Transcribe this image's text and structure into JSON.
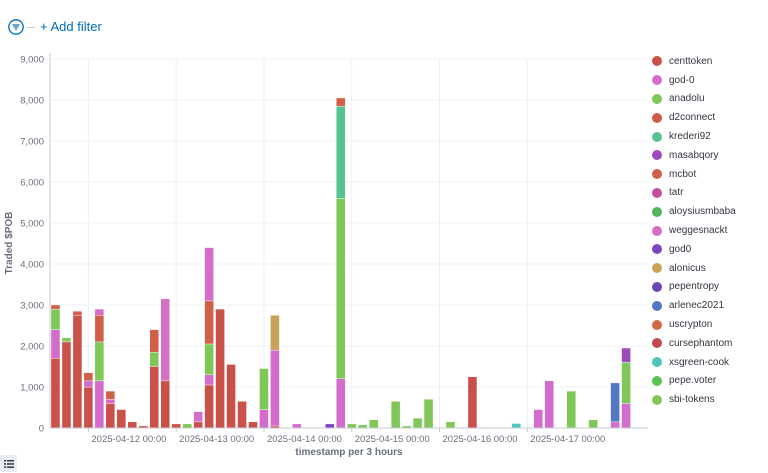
{
  "filter_bar": {
    "add_filter_label": "+ Add filter",
    "filter_icon": "filter-icon"
  },
  "legend_icon": "list-icon",
  "chart_data": {
    "type": "bar",
    "stacked": true,
    "ylabel": "Traded $POB",
    "xlabel": "timestamp per 3 hours",
    "ylim": [
      0,
      9000
    ],
    "yticks": [
      "0",
      "1,000",
      "2,000",
      "3,000",
      "4,000",
      "5,000",
      "6,000",
      "7,000",
      "8,000",
      "9,000"
    ],
    "xticks": [
      {
        "label": "2025-04-12 00:00",
        "at": "2025-04-12T00:00"
      },
      {
        "label": "2025-04-13 00:00",
        "at": "2025-04-13T00:00"
      },
      {
        "label": "2025-04-14 00:00",
        "at": "2025-04-14T00:00"
      },
      {
        "label": "2025-04-15 00:00",
        "at": "2025-04-15T00:00"
      },
      {
        "label": "2025-04-16 00:00",
        "at": "2025-04-16T00:00"
      },
      {
        "label": "2025-04-17 00:00",
        "at": "2025-04-17T00:00"
      }
    ],
    "grid": true,
    "legend_position": "right",
    "categories": [
      "2025-04-11T15:00",
      "2025-04-11T18:00",
      "2025-04-11T21:00",
      "2025-04-12T00:00",
      "2025-04-12T03:00",
      "2025-04-12T06:00",
      "2025-04-12T09:00",
      "2025-04-12T12:00",
      "2025-04-12T15:00",
      "2025-04-12T18:00",
      "2025-04-12T21:00",
      "2025-04-13T00:00",
      "2025-04-13T03:00",
      "2025-04-13T06:00",
      "2025-04-13T09:00",
      "2025-04-13T12:00",
      "2025-04-13T15:00",
      "2025-04-13T18:00",
      "2025-04-13T21:00",
      "2025-04-14T00:00",
      "2025-04-14T03:00",
      "2025-04-14T06:00",
      "2025-04-14T09:00",
      "2025-04-14T12:00",
      "2025-04-14T15:00",
      "2025-04-14T18:00",
      "2025-04-14T21:00",
      "2025-04-15T00:00",
      "2025-04-15T03:00",
      "2025-04-15T06:00",
      "2025-04-15T09:00",
      "2025-04-15T12:00",
      "2025-04-15T15:00",
      "2025-04-15T18:00",
      "2025-04-15T21:00",
      "2025-04-16T00:00",
      "2025-04-16T03:00",
      "2025-04-16T06:00",
      "2025-04-16T09:00",
      "2025-04-16T12:00",
      "2025-04-16T15:00",
      "2025-04-16T18:00",
      "2025-04-16T21:00",
      "2025-04-17T00:00",
      "2025-04-17T03:00",
      "2025-04-17T06:00",
      "2025-04-17T09:00",
      "2025-04-17T12:00",
      "2025-04-17T15:00",
      "2025-04-17T18:00",
      "2025-04-17T21:00",
      "2025-04-18T00:00",
      "2025-04-18T03:00",
      "2025-04-18T06:00"
    ],
    "series": [
      {
        "name": "centtoken",
        "color": "#c9514a",
        "values": [
          1700,
          2100,
          2750,
          1000,
          0,
          600,
          450,
          150,
          50,
          1500,
          1150,
          100,
          0,
          150,
          1050,
          2900,
          1550,
          650,
          150,
          0,
          50,
          0,
          0,
          0,
          0,
          0,
          0,
          0,
          0,
          0,
          0,
          0,
          0,
          0,
          0,
          0,
          0,
          0,
          1250,
          0,
          0,
          0,
          0,
          0,
          0,
          0,
          0,
          0,
          0,
          0,
          0,
          0,
          0,
          0
        ]
      },
      {
        "name": "god-0",
        "color": "#d36ccb",
        "values": [
          700,
          0,
          0,
          150,
          1150,
          100,
          0,
          0,
          0,
          0,
          0,
          0,
          0,
          250,
          250,
          0,
          0,
          0,
          0,
          450,
          1850,
          0,
          100,
          0,
          0,
          0,
          1200,
          0,
          0,
          0,
          0,
          0,
          0,
          0,
          0,
          0,
          0,
          0,
          0,
          0,
          0,
          0,
          0,
          0,
          450,
          1150,
          0,
          0,
          0,
          0,
          0,
          150,
          600,
          0
        ]
      },
      {
        "name": "anadolu",
        "color": "#7fc759",
        "values": [
          500,
          0,
          0,
          0,
          950,
          0,
          0,
          0,
          0,
          350,
          0,
          0,
          0,
          0,
          750,
          0,
          0,
          0,
          0,
          1000,
          0,
          0,
          0,
          0,
          0,
          0,
          4400,
          100,
          80,
          200,
          0,
          650,
          50,
          240,
          700,
          0,
          150,
          0,
          0,
          0,
          0,
          0,
          0,
          0,
          0,
          0,
          0,
          900,
          0,
          200,
          0,
          0,
          1000,
          0
        ]
      },
      {
        "name": "d2connect",
        "color": "#cf5c48",
        "values": [
          100,
          0,
          0,
          0,
          0,
          0,
          0,
          0,
          0,
          0,
          0,
          0,
          0,
          0,
          0,
          0,
          0,
          0,
          0,
          0,
          0,
          0,
          0,
          0,
          0,
          0,
          0,
          0,
          0,
          0,
          0,
          0,
          0,
          0,
          0,
          0,
          0,
          0,
          0,
          0,
          0,
          0,
          0,
          0,
          0,
          0,
          0,
          0,
          0,
          0,
          0,
          0,
          0,
          0
        ]
      },
      {
        "name": "krederi92",
        "color": "#56c491",
        "values": [
          0,
          0,
          0,
          0,
          0,
          0,
          0,
          0,
          0,
          0,
          0,
          0,
          0,
          0,
          0,
          0,
          0,
          0,
          0,
          0,
          0,
          0,
          0,
          0,
          0,
          0,
          2250,
          0,
          0,
          0,
          0,
          0,
          0,
          0,
          0,
          0,
          0,
          0,
          0,
          0,
          0,
          0,
          0,
          0,
          0,
          0,
          0,
          0,
          0,
          0,
          0,
          0,
          0,
          0
        ]
      },
      {
        "name": "masabqory",
        "color": "#9e4ab8",
        "values": [
          0,
          0,
          0,
          0,
          0,
          0,
          0,
          0,
          0,
          0,
          0,
          0,
          0,
          0,
          0,
          0,
          0,
          0,
          0,
          0,
          0,
          0,
          0,
          0,
          0,
          0,
          0,
          0,
          0,
          0,
          0,
          0,
          0,
          0,
          0,
          0,
          0,
          0,
          0,
          0,
          0,
          0,
          0,
          0,
          0,
          0,
          0,
          0,
          0,
          0,
          0,
          0,
          0,
          0
        ]
      },
      {
        "name": "mcbot",
        "color": "#d0604a",
        "values": [
          0,
          0,
          100,
          200,
          650,
          200,
          0,
          0,
          0,
          550,
          0,
          0,
          0,
          0,
          1050,
          0,
          0,
          0,
          0,
          0,
          0,
          0,
          0,
          0,
          0,
          0,
          200,
          0,
          0,
          0,
          0,
          0,
          0,
          0,
          0,
          0,
          0,
          0,
          0,
          0,
          0,
          0,
          0,
          0,
          0,
          0,
          0,
          0,
          0,
          0,
          0,
          0,
          0,
          0
        ]
      },
      {
        "name": "tatr",
        "color": "#c54d9e",
        "values": [
          0,
          0,
          0,
          0,
          0,
          0,
          0,
          0,
          0,
          0,
          0,
          0,
          0,
          0,
          0,
          0,
          0,
          0,
          0,
          0,
          0,
          0,
          0,
          0,
          0,
          0,
          0,
          0,
          0,
          0,
          0,
          0,
          0,
          0,
          0,
          0,
          0,
          0,
          0,
          0,
          0,
          0,
          0,
          0,
          0,
          0,
          0,
          0,
          0,
          0,
          0,
          0,
          0,
          0
        ]
      },
      {
        "name": "aloysiusmbaba",
        "color": "#52b55a",
        "values": [
          0,
          0,
          0,
          0,
          0,
          0,
          0,
          0,
          0,
          0,
          0,
          0,
          0,
          0,
          0,
          0,
          0,
          0,
          0,
          0,
          0,
          0,
          0,
          0,
          0,
          0,
          0,
          0,
          0,
          0,
          0,
          0,
          0,
          0,
          0,
          0,
          0,
          0,
          0,
          0,
          0,
          0,
          0,
          0,
          0,
          0,
          0,
          0,
          0,
          0,
          0,
          0,
          0,
          0
        ]
      },
      {
        "name": "weggesnackt",
        "color": "#d46fc4",
        "values": [
          0,
          0,
          0,
          0,
          150,
          0,
          0,
          0,
          0,
          0,
          2000,
          0,
          0,
          0,
          0,
          0,
          0,
          0,
          0,
          0,
          0,
          0,
          0,
          0,
          0,
          0,
          0,
          0,
          0,
          0,
          0,
          0,
          0,
          0,
          0,
          0,
          0,
          0,
          0,
          0,
          0,
          0,
          0,
          0,
          0,
          0,
          0,
          0,
          0,
          0,
          0,
          0,
          0,
          0
        ]
      },
      {
        "name": "god0",
        "color": "#7e45c2",
        "values": [
          0,
          0,
          0,
          0,
          0,
          0,
          0,
          0,
          0,
          0,
          0,
          0,
          0,
          0,
          0,
          0,
          0,
          0,
          0,
          0,
          0,
          0,
          0,
          0,
          0,
          100,
          0,
          0,
          0,
          0,
          0,
          0,
          0,
          0,
          0,
          0,
          0,
          0,
          0,
          0,
          0,
          0,
          0,
          0,
          0,
          0,
          0,
          0,
          0,
          0,
          0,
          0,
          0,
          0
        ]
      },
      {
        "name": "alonicus",
        "color": "#c9a259",
        "values": [
          0,
          0,
          0,
          0,
          0,
          0,
          0,
          0,
          0,
          0,
          0,
          0,
          0,
          0,
          0,
          0,
          0,
          0,
          0,
          0,
          850,
          0,
          0,
          0,
          0,
          0,
          0,
          0,
          0,
          0,
          0,
          0,
          0,
          0,
          0,
          0,
          0,
          0,
          0,
          0,
          0,
          0,
          0,
          0,
          0,
          0,
          0,
          0,
          0,
          0,
          0,
          0,
          0,
          0
        ]
      },
      {
        "name": "pepentropy",
        "color": "#6a46b8",
        "values": [
          0,
          0,
          0,
          0,
          0,
          0,
          0,
          0,
          0,
          0,
          0,
          0,
          0,
          0,
          0,
          0,
          0,
          0,
          0,
          0,
          0,
          0,
          0,
          0,
          0,
          0,
          0,
          0,
          0,
          0,
          0,
          0,
          0,
          0,
          0,
          0,
          0,
          0,
          0,
          0,
          0,
          0,
          0,
          0,
          0,
          0,
          0,
          0,
          0,
          0,
          0,
          0,
          0,
          0
        ]
      },
      {
        "name": "arlenec2021",
        "color": "#5277c4",
        "values": [
          0,
          0,
          0,
          0,
          0,
          0,
          0,
          0,
          0,
          0,
          0,
          0,
          0,
          0,
          0,
          0,
          0,
          0,
          0,
          0,
          0,
          0,
          0,
          0,
          0,
          0,
          0,
          0,
          0,
          0,
          0,
          0,
          0,
          0,
          0,
          0,
          0,
          0,
          0,
          0,
          0,
          0,
          0,
          0,
          0,
          0,
          0,
          0,
          0,
          0,
          0,
          950,
          0,
          0
        ]
      },
      {
        "name": "uscrypton",
        "color": "#cf6a47",
        "values": [
          0,
          0,
          0,
          0,
          0,
          0,
          0,
          0,
          0,
          0,
          0,
          0,
          0,
          0,
          0,
          0,
          0,
          0,
          0,
          0,
          0,
          0,
          0,
          0,
          0,
          0,
          0,
          0,
          0,
          0,
          0,
          0,
          0,
          0,
          0,
          0,
          0,
          0,
          0,
          0,
          0,
          0,
          0,
          0,
          0,
          0,
          0,
          0,
          0,
          0,
          0,
          0,
          0,
          0
        ]
      },
      {
        "name": "cursephantom",
        "color": "#c14a4f",
        "values": [
          0,
          0,
          0,
          0,
          0,
          0,
          0,
          0,
          0,
          0,
          0,
          0,
          0,
          0,
          0,
          0,
          0,
          0,
          0,
          0,
          0,
          0,
          0,
          0,
          0,
          0,
          0,
          0,
          0,
          0,
          0,
          0,
          0,
          0,
          0,
          0,
          0,
          0,
          0,
          0,
          0,
          0,
          0,
          0,
          0,
          0,
          0,
          0,
          0,
          0,
          0,
          0,
          0,
          0
        ]
      },
      {
        "name": "xsgreen-cook",
        "color": "#4fc6bb",
        "values": [
          0,
          0,
          0,
          0,
          0,
          0,
          0,
          0,
          0,
          0,
          0,
          0,
          0,
          0,
          0,
          0,
          0,
          0,
          0,
          0,
          0,
          0,
          0,
          0,
          0,
          0,
          0,
          0,
          0,
          0,
          0,
          0,
          0,
          0,
          0,
          0,
          0,
          0,
          0,
          0,
          0,
          0,
          110,
          0,
          0,
          0,
          0,
          0,
          0,
          0,
          0,
          0,
          0,
          0
        ]
      },
      {
        "name": "pepe.voter",
        "color": "#5cbf52",
        "values": [
          0,
          0,
          0,
          0,
          0,
          0,
          0,
          0,
          0,
          0,
          0,
          0,
          0,
          0,
          0,
          0,
          0,
          0,
          0,
          0,
          0,
          0,
          0,
          0,
          0,
          0,
          0,
          0,
          0,
          0,
          0,
          0,
          0,
          0,
          0,
          0,
          0,
          0,
          0,
          0,
          0,
          0,
          0,
          0,
          0,
          0,
          0,
          0,
          0,
          0,
          0,
          0,
          0,
          0
        ]
      },
      {
        "name": "sbi-tokens",
        "color": "#86c55c",
        "values": [
          0,
          100,
          0,
          0,
          0,
          0,
          0,
          0,
          0,
          0,
          0,
          0,
          0,
          0,
          0,
          0,
          0,
          0,
          0,
          0,
          0,
          0,
          0,
          0,
          0,
          0,
          0,
          0,
          0,
          0,
          0,
          0,
          0,
          0,
          0,
          0,
          0,
          0,
          0,
          0,
          0,
          0,
          0,
          0,
          0,
          0,
          0,
          0,
          0,
          0,
          0,
          0,
          0,
          0
        ]
      }
    ],
    "top_segments": [
      {
        "category": "2025-04-13T09:00",
        "series": "god-0",
        "value": 1300
      },
      {
        "category": "2025-04-13T03:00",
        "series": "anadolu",
        "value": 100
      },
      {
        "category": "2025-04-18T03:00",
        "series": "masabqory",
        "value": 350
      }
    ]
  }
}
